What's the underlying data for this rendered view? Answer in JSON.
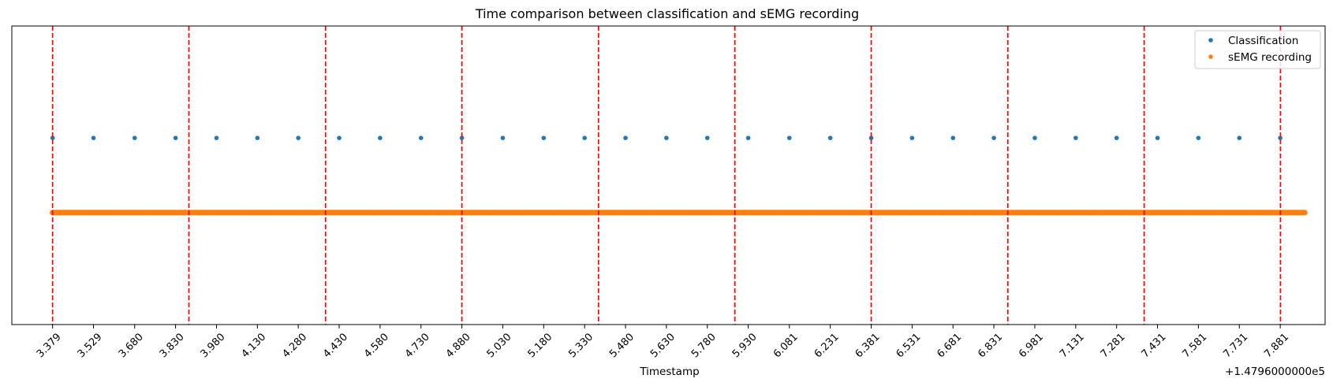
{
  "chart_data": {
    "type": "scatter",
    "title": "Time comparison between classification and sEMG recording",
    "xlabel": "Timestamp",
    "ylabel": "",
    "offset_label": "+1.4796000000e5",
    "xlim": [
      3.2295,
      8.0456
    ],
    "ylim": [
      0,
      1
    ],
    "grid": false,
    "legend_position": "top-right",
    "x_ticks": [
      "3.379",
      "3.529",
      "3.680",
      "3.830",
      "3.980",
      "4.130",
      "4.280",
      "4.430",
      "4.580",
      "4.730",
      "4.880",
      "5.030",
      "5.180",
      "5.330",
      "5.480",
      "5.630",
      "5.780",
      "5.930",
      "6.081",
      "6.231",
      "6.381",
      "6.531",
      "6.681",
      "6.831",
      "6.981",
      "7.131",
      "7.281",
      "7.431",
      "7.581",
      "7.731",
      "7.881"
    ],
    "series": [
      {
        "name": "Classification",
        "color": "#1f77b4",
        "y": 0.625,
        "x": [
          3.379,
          3.529,
          3.68,
          3.83,
          3.98,
          4.13,
          4.28,
          4.43,
          4.58,
          4.73,
          4.88,
          5.03,
          5.18,
          5.33,
          5.48,
          5.63,
          5.78,
          5.93,
          6.081,
          6.231,
          6.381,
          6.531,
          6.681,
          6.831,
          6.981,
          7.131,
          7.281,
          7.431,
          7.581,
          7.731,
          7.881
        ]
      },
      {
        "name": "sEMG recording",
        "color": "#ff7f0e",
        "y": 0.375,
        "x_start": 3.379,
        "x_end": 7.975
      }
    ],
    "vertical_lines": {
      "color": "#ff0000",
      "style": "dashed",
      "x": [
        3.379,
        3.879,
        4.38,
        4.88,
        5.381,
        5.881,
        6.381,
        6.882,
        7.382,
        7.882
      ]
    }
  }
}
